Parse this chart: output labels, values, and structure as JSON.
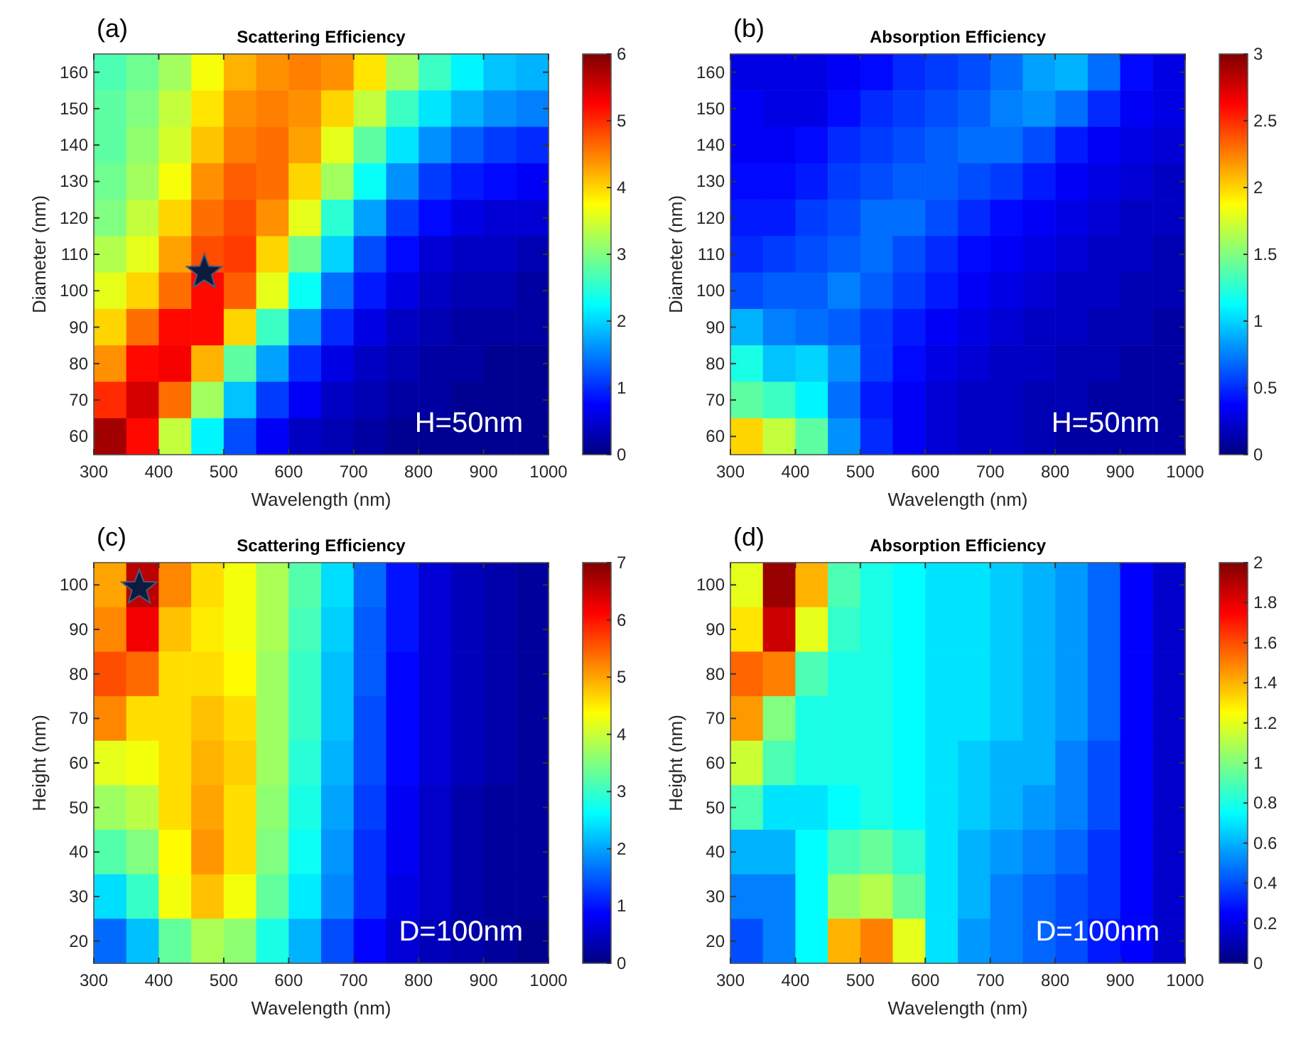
{
  "chart_data": [
    {
      "type": "heatmap",
      "title": "Scattering Efficiency",
      "xlabel": "Wavelength (nm)",
      "ylabel": "Diameter (nm)",
      "annotations": [
        "(a)",
        "H=50nm"
      ],
      "x": [
        325,
        375,
        425,
        475,
        525,
        575,
        625,
        675,
        725,
        775,
        825,
        875,
        925,
        975
      ],
      "xlim": [
        300,
        1000
      ],
      "xticks": [
        300,
        400,
        500,
        600,
        700,
        800,
        900,
        1000
      ],
      "y_categories": [
        "160",
        "150",
        "140",
        "130",
        "120",
        "110",
        "100",
        "90",
        "80",
        "70",
        "60"
      ],
      "cells": [
        [
          2.7,
          2.9,
          3.2,
          3.7,
          4.2,
          4.4,
          4.5,
          4.4,
          3.9,
          3.2,
          2.6,
          2.2,
          1.9,
          1.8
        ],
        [
          2.8,
          3.0,
          3.4,
          3.9,
          4.4,
          4.5,
          4.4,
          4.0,
          3.4,
          2.6,
          2.1,
          1.8,
          1.6,
          1.5
        ],
        [
          2.8,
          3.1,
          3.5,
          4.1,
          4.5,
          4.6,
          4.3,
          3.6,
          2.8,
          2.1,
          1.6,
          1.3,
          1.1,
          1.0
        ],
        [
          2.9,
          3.2,
          3.7,
          4.4,
          4.7,
          4.6,
          4.0,
          3.2,
          2.3,
          1.6,
          1.1,
          0.9,
          0.8,
          0.7
        ],
        [
          3.0,
          3.4,
          4.0,
          4.6,
          4.8,
          4.4,
          3.6,
          2.5,
          1.7,
          1.1,
          0.8,
          0.6,
          0.5,
          0.5
        ],
        [
          3.3,
          3.6,
          4.3,
          4.8,
          4.9,
          4.0,
          2.9,
          2.0,
          1.2,
          0.8,
          0.5,
          0.4,
          0.4,
          0.3
        ],
        [
          3.6,
          4.0,
          4.6,
          5.2,
          4.7,
          3.6,
          2.3,
          1.4,
          0.9,
          0.6,
          0.4,
          0.3,
          0.3,
          0.2
        ],
        [
          4.0,
          4.6,
          5.2,
          5.2,
          4.0,
          2.6,
          1.6,
          1.0,
          0.6,
          0.4,
          0.3,
          0.2,
          0.2,
          0.2
        ],
        [
          4.4,
          5.2,
          5.3,
          4.2,
          2.8,
          1.7,
          1.0,
          0.6,
          0.4,
          0.3,
          0.2,
          0.2,
          0.1,
          0.1
        ],
        [
          5.0,
          5.5,
          4.6,
          3.2,
          1.9,
          1.1,
          0.7,
          0.4,
          0.3,
          0.2,
          0.2,
          0.1,
          0.1,
          0.1
        ],
        [
          5.8,
          5.2,
          3.4,
          2.2,
          1.2,
          0.7,
          0.4,
          0.3,
          0.2,
          0.1,
          0.1,
          0.1,
          0.1,
          0.1
        ]
      ],
      "clim": [
        0,
        6
      ],
      "cticks": [
        0,
        1,
        2,
        3,
        4,
        5,
        6
      ]
    },
    {
      "type": "heatmap",
      "title": "Absorption Efficiency",
      "xlabel": "Wavelength (nm)",
      "ylabel": "Diameter (nm)",
      "annotations": [
        "(b)",
        "H=50nm"
      ],
      "x": [
        325,
        375,
        425,
        475,
        525,
        575,
        625,
        675,
        725,
        775,
        825,
        875,
        925,
        975
      ],
      "xlim": [
        300,
        1000
      ],
      "xticks": [
        300,
        400,
        500,
        600,
        700,
        800,
        900,
        1000
      ],
      "y_categories": [
        "160",
        "150",
        "140",
        "130",
        "120",
        "110",
        "100",
        "90",
        "80",
        "70",
        "60"
      ],
      "cells": [
        [
          0.3,
          0.3,
          0.3,
          0.35,
          0.4,
          0.5,
          0.55,
          0.6,
          0.7,
          0.85,
          0.9,
          0.7,
          0.4,
          0.3
        ],
        [
          0.35,
          0.3,
          0.3,
          0.4,
          0.5,
          0.55,
          0.6,
          0.65,
          0.75,
          0.8,
          0.7,
          0.5,
          0.35,
          0.3
        ],
        [
          0.35,
          0.35,
          0.4,
          0.5,
          0.55,
          0.6,
          0.65,
          0.7,
          0.7,
          0.6,
          0.45,
          0.35,
          0.3,
          0.25
        ],
        [
          0.4,
          0.4,
          0.45,
          0.55,
          0.6,
          0.65,
          0.65,
          0.6,
          0.55,
          0.45,
          0.35,
          0.3,
          0.25,
          0.2
        ],
        [
          0.45,
          0.45,
          0.55,
          0.6,
          0.7,
          0.7,
          0.6,
          0.5,
          0.4,
          0.35,
          0.3,
          0.25,
          0.2,
          0.2
        ],
        [
          0.5,
          0.55,
          0.6,
          0.65,
          0.7,
          0.6,
          0.5,
          0.4,
          0.35,
          0.3,
          0.25,
          0.2,
          0.2,
          0.15
        ],
        [
          0.6,
          0.65,
          0.65,
          0.75,
          0.65,
          0.55,
          0.45,
          0.35,
          0.3,
          0.25,
          0.2,
          0.2,
          0.15,
          0.15
        ],
        [
          0.9,
          0.75,
          0.7,
          0.65,
          0.55,
          0.45,
          0.35,
          0.3,
          0.25,
          0.2,
          0.2,
          0.15,
          0.15,
          0.1
        ],
        [
          1.2,
          0.95,
          1.0,
          0.8,
          0.55,
          0.4,
          0.3,
          0.25,
          0.2,
          0.2,
          0.15,
          0.15,
          0.1,
          0.1
        ],
        [
          1.4,
          1.3,
          1.1,
          0.7,
          0.45,
          0.35,
          0.25,
          0.2,
          0.2,
          0.15,
          0.15,
          0.1,
          0.1,
          0.1
        ],
        [
          2.0,
          1.7,
          1.4,
          0.8,
          0.5,
          0.35,
          0.25,
          0.2,
          0.2,
          0.15,
          0.1,
          0.1,
          0.1,
          0.1
        ]
      ],
      "clim": [
        0,
        3
      ],
      "cticks": [
        0,
        0.5,
        1,
        1.5,
        2,
        2.5,
        3
      ]
    },
    {
      "type": "heatmap",
      "title": "Scattering Efficiency",
      "xlabel": "Wavelength (nm)",
      "ylabel": "Height (nm)",
      "annotations": [
        "(c)",
        "D=100nm"
      ],
      "x": [
        325,
        375,
        425,
        475,
        525,
        575,
        625,
        675,
        725,
        775,
        825,
        875,
        925,
        975
      ],
      "xlim": [
        300,
        1000
      ],
      "xticks": [
        300,
        400,
        500,
        600,
        700,
        800,
        900,
        1000
      ],
      "y_categories": [
        "100",
        "90",
        "80",
        "70",
        "60",
        "50",
        "40",
        "30",
        "20"
      ],
      "cells": [
        [
          5.0,
          6.6,
          5.2,
          4.6,
          4.3,
          3.8,
          3.2,
          2.4,
          1.6,
          1.0,
          0.6,
          0.4,
          0.3,
          0.2
        ],
        [
          5.2,
          6.2,
          4.8,
          4.5,
          4.3,
          3.8,
          3.1,
          2.3,
          1.5,
          1.0,
          0.6,
          0.4,
          0.3,
          0.2
        ],
        [
          5.6,
          5.4,
          4.6,
          4.6,
          4.4,
          3.7,
          3.0,
          2.2,
          1.5,
          0.9,
          0.6,
          0.4,
          0.3,
          0.2
        ],
        [
          5.2,
          4.6,
          4.6,
          4.8,
          4.6,
          3.7,
          3.0,
          2.2,
          1.4,
          0.9,
          0.6,
          0.4,
          0.3,
          0.2
        ],
        [
          4.2,
          4.3,
          4.6,
          4.9,
          4.7,
          3.7,
          2.9,
          2.1,
          1.4,
          0.9,
          0.6,
          0.4,
          0.3,
          0.2
        ],
        [
          3.7,
          3.9,
          4.6,
          5.0,
          4.6,
          3.6,
          2.8,
          2.0,
          1.3,
          0.8,
          0.5,
          0.3,
          0.2,
          0.2
        ],
        [
          3.2,
          3.5,
          4.4,
          5.1,
          4.6,
          3.5,
          2.7,
          1.9,
          1.2,
          0.8,
          0.5,
          0.3,
          0.2,
          0.2
        ],
        [
          2.4,
          3.0,
          4.3,
          4.8,
          4.3,
          3.3,
          2.5,
          1.8,
          1.2,
          0.7,
          0.5,
          0.3,
          0.2,
          0.2
        ],
        [
          1.6,
          2.2,
          3.3,
          3.8,
          3.6,
          2.8,
          2.1,
          1.4,
          0.9,
          0.6,
          0.4,
          0.3,
          0.2,
          0.1
        ]
      ],
      "clim": [
        0,
        7
      ],
      "cticks": [
        0,
        1,
        2,
        3,
        4,
        5,
        6,
        7
      ]
    },
    {
      "type": "heatmap",
      "title": "Absorption Efficiency",
      "xlabel": "Wavelength (nm)",
      "ylabel": "Height (nm)",
      "annotations": [
        "(d)",
        "D=100nm"
      ],
      "x": [
        325,
        375,
        425,
        475,
        525,
        575,
        625,
        675,
        725,
        775,
        825,
        875,
        925,
        975
      ],
      "xlim": [
        300,
        1000
      ],
      "xticks": [
        300,
        400,
        500,
        600,
        700,
        800,
        900,
        1000
      ],
      "y_categories": [
        "100",
        "90",
        "80",
        "70",
        "60",
        "50",
        "40",
        "30",
        "20"
      ],
      "cells": [
        [
          1.2,
          1.95,
          1.4,
          0.9,
          0.8,
          0.75,
          0.7,
          0.7,
          0.65,
          0.6,
          0.55,
          0.45,
          0.25,
          0.15
        ],
        [
          1.3,
          1.85,
          1.2,
          0.85,
          0.8,
          0.75,
          0.7,
          0.7,
          0.65,
          0.6,
          0.55,
          0.45,
          0.25,
          0.15
        ],
        [
          1.55,
          1.5,
          0.9,
          0.8,
          0.8,
          0.75,
          0.7,
          0.7,
          0.65,
          0.6,
          0.55,
          0.45,
          0.25,
          0.15
        ],
        [
          1.45,
          1.0,
          0.8,
          0.8,
          0.8,
          0.75,
          0.7,
          0.7,
          0.65,
          0.6,
          0.55,
          0.45,
          0.25,
          0.15
        ],
        [
          1.15,
          0.9,
          0.8,
          0.8,
          0.8,
          0.75,
          0.7,
          0.65,
          0.6,
          0.6,
          0.5,
          0.4,
          0.25,
          0.15
        ],
        [
          0.9,
          0.7,
          0.7,
          0.75,
          0.8,
          0.75,
          0.7,
          0.65,
          0.6,
          0.55,
          0.5,
          0.4,
          0.25,
          0.15
        ],
        [
          0.6,
          0.6,
          0.75,
          0.9,
          0.95,
          0.85,
          0.7,
          0.6,
          0.55,
          0.5,
          0.45,
          0.35,
          0.25,
          0.15
        ],
        [
          0.5,
          0.5,
          0.75,
          1.05,
          1.1,
          0.95,
          0.7,
          0.6,
          0.5,
          0.45,
          0.4,
          0.35,
          0.25,
          0.15
        ],
        [
          0.4,
          0.5,
          0.75,
          1.4,
          1.5,
          1.2,
          0.7,
          0.55,
          0.5,
          0.45,
          0.4,
          0.3,
          0.25,
          0.15
        ]
      ],
      "clim": [
        0,
        2
      ],
      "cticks": [
        0,
        0.2,
        0.4,
        0.6,
        0.8,
        1,
        1.2,
        1.4,
        1.6,
        1.8,
        2
      ]
    }
  ]
}
